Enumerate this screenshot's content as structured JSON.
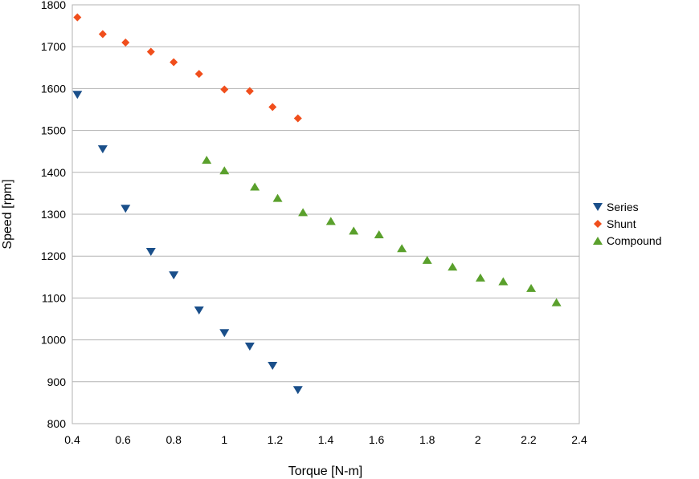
{
  "chart_data": {
    "type": "scatter",
    "title": "",
    "xlabel": "Torque [N-m]",
    "ylabel": "Speed [rpm]",
    "xlim": [
      0.4,
      2.4
    ],
    "ylim": [
      800,
      1800
    ],
    "xticks": [
      0.4,
      0.6,
      0.8,
      1,
      1.2,
      1.4,
      1.6,
      1.8,
      2,
      2.2,
      2.4
    ],
    "yticks": [
      800,
      900,
      1000,
      1100,
      1200,
      1300,
      1400,
      1500,
      1600,
      1700,
      1800
    ],
    "grid": "horizontal",
    "legend_position": "right",
    "series": [
      {
        "name": "Series",
        "marker": "triangle-down",
        "color": "#1a4f8a",
        "x": [
          0.42,
          0.52,
          0.61,
          0.71,
          0.8,
          0.9,
          1.0,
          1.1,
          1.19,
          1.29
        ],
        "y": [
          1585,
          1455,
          1313,
          1210,
          1154,
          1070,
          1016,
          984,
          938,
          880
        ]
      },
      {
        "name": "Shunt",
        "marker": "diamond",
        "color": "#f04e1c",
        "x": [
          0.42,
          0.52,
          0.61,
          0.71,
          0.8,
          0.9,
          1.0,
          1.1,
          1.19,
          1.29
        ],
        "y": [
          1770,
          1730,
          1710,
          1688,
          1663,
          1635,
          1598,
          1594,
          1556,
          1529
        ]
      },
      {
        "name": "Compound",
        "marker": "triangle-up",
        "color": "#5aa02c",
        "x": [
          0.93,
          1.0,
          1.12,
          1.21,
          1.31,
          1.42,
          1.51,
          1.61,
          1.7,
          1.8,
          1.9,
          2.01,
          2.1,
          2.21,
          2.31
        ],
        "y": [
          1430,
          1405,
          1366,
          1339,
          1305,
          1284,
          1261,
          1252,
          1219,
          1191,
          1175,
          1149,
          1140,
          1124,
          1090
        ]
      }
    ]
  }
}
